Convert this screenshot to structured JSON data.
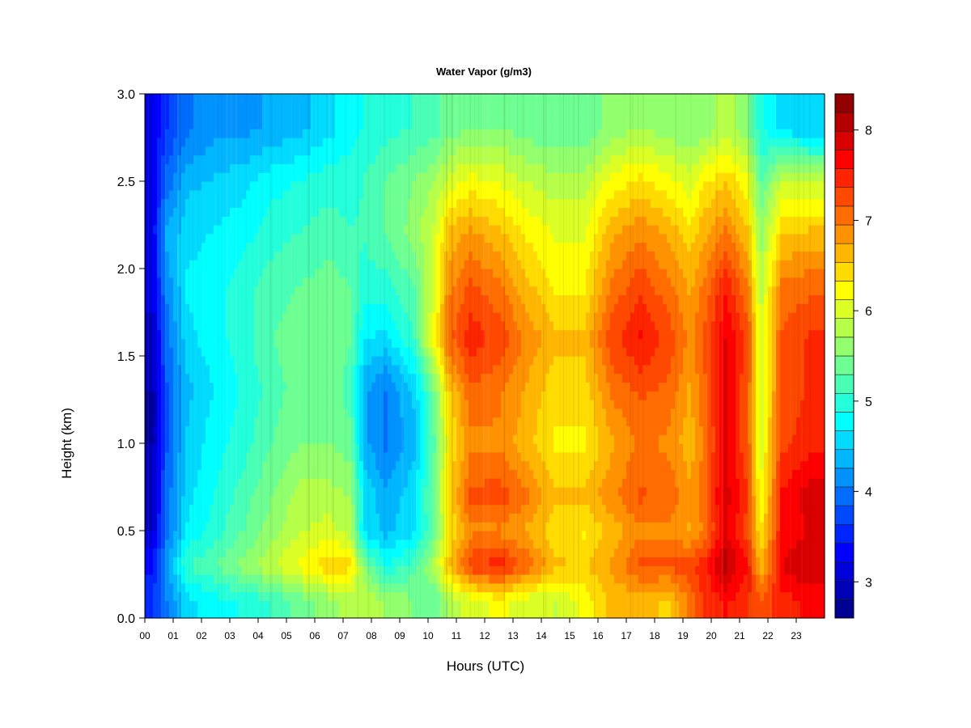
{
  "chart_data": {
    "type": "heatmap",
    "title": "Water Vapor (g/m3)",
    "xlabel": "Hours (UTC)",
    "ylabel": "Height (km)",
    "x_ticks": [
      "00",
      "01",
      "02",
      "03",
      "04",
      "05",
      "06",
      "07",
      "08",
      "09",
      "10",
      "11",
      "12",
      "13",
      "14",
      "15",
      "16",
      "17",
      "18",
      "19",
      "20",
      "21",
      "22",
      "23"
    ],
    "y_ticks": [
      "0.0",
      "0.5",
      "1.0",
      "1.5",
      "2.0",
      "2.5",
      "3.0"
    ],
    "xlim": [
      0,
      24
    ],
    "ylim": [
      0.0,
      3.0
    ],
    "colorbar": {
      "min": 2.6,
      "max": 8.4,
      "ticks": [
        "3",
        "4",
        "5",
        "6",
        "7",
        "8"
      ],
      "tick_values": [
        3,
        4,
        5,
        6,
        7,
        8
      ],
      "levels": 28
    },
    "heights_km": [
      0.1,
      0.3,
      0.5,
      0.7,
      1.0,
      1.3,
      1.6,
      1.9,
      2.2,
      2.5,
      2.8
    ],
    "hours": [
      0.25,
      0.75,
      1.5,
      2.5,
      3.5,
      4.5,
      5.5,
      6.5,
      7.25,
      7.75,
      8.5,
      9.5,
      10.25,
      10.75,
      11.5,
      12.5,
      13.5,
      14.5,
      15.5,
      16.5,
      17.5,
      18.5,
      19.25,
      19.75,
      20.5,
      21.25,
      21.75,
      22.5,
      23.5
    ],
    "values": [
      [
        3.6,
        4.0,
        4.6,
        4.8,
        4.9,
        5.1,
        5.4,
        5.6,
        5.8,
        5.9,
        5.7,
        5.5,
        5.3,
        5.8,
        6.0,
        6.2,
        6.0,
        5.9,
        6.2,
        6.6,
        6.6,
        6.5,
        7.0,
        7.4,
        7.6,
        7.4,
        7.2,
        7.5,
        7.6
      ],
      [
        3.4,
        4.2,
        5.1,
        5.3,
        5.6,
        5.9,
        6.2,
        6.5,
        6.4,
        5.5,
        4.9,
        5.2,
        5.8,
        6.6,
        7.3,
        7.5,
        7.1,
        6.6,
        6.5,
        6.8,
        7.2,
        7.2,
        7.3,
        7.5,
        8.1,
        7.6,
        6.6,
        7.8,
        8.0
      ],
      [
        3.0,
        3.9,
        4.7,
        5.0,
        5.3,
        5.6,
        5.9,
        6.0,
        5.8,
        4.6,
        4.4,
        4.6,
        5.4,
        6.3,
        6.9,
        6.9,
        6.7,
        6.4,
        6.3,
        6.6,
        6.9,
        6.9,
        6.7,
        7.0,
        7.8,
        7.3,
        6.3,
        7.6,
        7.8
      ],
      [
        2.9,
        3.9,
        4.6,
        4.9,
        5.2,
        5.5,
        5.8,
        5.8,
        5.7,
        4.7,
        4.3,
        4.6,
        5.5,
        6.5,
        7.2,
        7.3,
        7.0,
        6.6,
        6.6,
        6.9,
        7.2,
        7.1,
        6.8,
        7.1,
        7.9,
        7.4,
        6.1,
        7.6,
        7.9
      ],
      [
        2.8,
        3.8,
        4.5,
        4.8,
        5.0,
        5.3,
        5.5,
        5.5,
        5.4,
        4.3,
        4.0,
        4.4,
        5.3,
        6.3,
        6.9,
        6.9,
        6.6,
        6.3,
        6.3,
        6.7,
        7.0,
        6.9,
        6.6,
        7.0,
        7.8,
        7.2,
        6.0,
        7.3,
        7.5
      ],
      [
        2.8,
        3.8,
        4.4,
        4.7,
        4.9,
        5.2,
        5.4,
        5.4,
        5.2,
        4.3,
        4.0,
        4.5,
        5.5,
        6.5,
        7.1,
        7.0,
        6.7,
        6.4,
        6.4,
        7.0,
        7.2,
        7.1,
        6.7,
        7.1,
        7.8,
        7.2,
        6.0,
        7.2,
        7.4
      ],
      [
        2.9,
        3.9,
        4.6,
        4.8,
        5.0,
        5.3,
        5.4,
        5.5,
        5.3,
        4.7,
        4.6,
        5.1,
        6.3,
        7.1,
        7.5,
        7.3,
        6.9,
        6.6,
        6.6,
        7.3,
        7.6,
        7.3,
        6.9,
        7.2,
        7.8,
        7.3,
        6.0,
        7.2,
        7.4
      ],
      [
        3.1,
        4.1,
        4.7,
        4.8,
        5.0,
        5.2,
        5.3,
        5.4,
        5.3,
        5.0,
        5.0,
        5.3,
        6.0,
        6.9,
        7.2,
        7.0,
        6.6,
        6.3,
        6.3,
        7.0,
        7.3,
        7.0,
        6.7,
        7.0,
        7.5,
        7.0,
        5.8,
        7.0,
        7.1
      ],
      [
        3.2,
        4.3,
        4.6,
        4.7,
        4.8,
        5.0,
        5.1,
        5.2,
        5.1,
        5.1,
        5.3,
        5.6,
        6.0,
        6.6,
        6.8,
        6.6,
        6.3,
        6.1,
        6.1,
        6.7,
        6.9,
        6.7,
        6.4,
        6.7,
        7.0,
        6.6,
        5.6,
        6.5,
        6.6
      ],
      [
        3.2,
        3.9,
        4.4,
        4.5,
        4.6,
        4.8,
        4.9,
        5.0,
        5.0,
        5.1,
        5.3,
        5.5,
        5.7,
        6.0,
        6.2,
        6.1,
        5.9,
        5.8,
        5.8,
        6.2,
        6.4,
        6.2,
        6.0,
        6.3,
        6.5,
        6.2,
        5.3,
        5.9,
        5.9
      ],
      [
        3.2,
        3.6,
        4.0,
        4.2,
        4.2,
        4.3,
        4.4,
        4.6,
        4.8,
        4.9,
        5.0,
        5.1,
        5.2,
        5.4,
        5.5,
        5.5,
        5.4,
        5.3,
        5.3,
        5.6,
        5.7,
        5.6,
        5.5,
        5.6,
        5.8,
        5.6,
        4.9,
        4.6,
        4.5
      ]
    ]
  }
}
